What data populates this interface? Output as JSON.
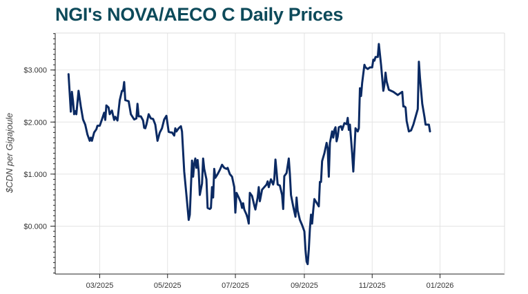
{
  "chart_data": {
    "type": "line",
    "title": "NGI's NOVA/AECO C Daily Prices",
    "xlabel": "",
    "ylabel": "$CDN per Gigajoule",
    "y_tick_labels": [
      "$0.000",
      "$1.000",
      "$2.000",
      "$3.000"
    ],
    "y_tick_values": [
      0,
      1,
      2,
      3
    ],
    "x_tick_labels": [
      "03/2025",
      "05/2025",
      "07/2025",
      "09/2025",
      "11/2025",
      "01/2026"
    ],
    "x_tick_values": [
      "2025-03-01",
      "2025-05-01",
      "2025-07-01",
      "2025-09-01",
      "2025-11-01",
      "2026-01-01"
    ],
    "xlim": [
      "2025-01-20",
      "2026-02-28"
    ],
    "ylim": [
      -0.92,
      3.71
    ],
    "grid": true,
    "line_color": "#0b2a63",
    "series": [
      {
        "values": [
          [
            "2025-02-01",
            2.92
          ],
          [
            "2025-02-03",
            2.2
          ],
          [
            "2025-02-04",
            2.58
          ],
          [
            "2025-02-05",
            2.4
          ],
          [
            "2025-02-06",
            2.15
          ],
          [
            "2025-02-07",
            2.21
          ],
          [
            "2025-02-08",
            2.15
          ],
          [
            "2025-02-10",
            2.6
          ],
          [
            "2025-02-12",
            2.3
          ],
          [
            "2025-02-14",
            2.05
          ],
          [
            "2025-02-16",
            1.95
          ],
          [
            "2025-02-18",
            1.76
          ],
          [
            "2025-02-20",
            1.64
          ],
          [
            "2025-02-21",
            1.7
          ],
          [
            "2025-02-22",
            1.64
          ],
          [
            "2025-02-24",
            1.8
          ],
          [
            "2025-02-26",
            1.86
          ],
          [
            "2025-02-27",
            1.93
          ],
          [
            "2025-03-01",
            1.93
          ],
          [
            "2025-03-03",
            2.05
          ],
          [
            "2025-03-05",
            2.18
          ],
          [
            "2025-03-06",
            2.04
          ],
          [
            "2025-03-07",
            2.32
          ],
          [
            "2025-03-09",
            2.28
          ],
          [
            "2025-03-10",
            2.15
          ],
          [
            "2025-03-12",
            2.22
          ],
          [
            "2025-03-14",
            2.04
          ],
          [
            "2025-03-15",
            2.1
          ],
          [
            "2025-03-17",
            2.03
          ],
          [
            "2025-03-19",
            2.42
          ],
          [
            "2025-03-21",
            2.6
          ],
          [
            "2025-03-22",
            2.6
          ],
          [
            "2025-03-23",
            2.77
          ],
          [
            "2025-03-24",
            2.42
          ],
          [
            "2025-03-27",
            2.4
          ],
          [
            "2025-03-29",
            2.15
          ],
          [
            "2025-04-01",
            2.05
          ],
          [
            "2025-04-03",
            2.07
          ],
          [
            "2025-04-04",
            2.35
          ],
          [
            "2025-04-05",
            2.11
          ],
          [
            "2025-04-07",
            2.11
          ],
          [
            "2025-04-09",
            2.03
          ],
          [
            "2025-04-10",
            1.89
          ],
          [
            "2025-04-11",
            1.88
          ],
          [
            "2025-04-12",
            1.95
          ],
          [
            "2025-04-14",
            2.15
          ],
          [
            "2025-04-16",
            2.07
          ],
          [
            "2025-04-18",
            2.06
          ],
          [
            "2025-04-20",
            1.95
          ],
          [
            "2025-04-22",
            1.64
          ],
          [
            "2025-04-24",
            1.8
          ],
          [
            "2025-04-26",
            1.88
          ],
          [
            "2025-04-28",
            2.05
          ],
          [
            "2025-04-30",
            2.12
          ],
          [
            "2025-05-02",
            1.81
          ],
          [
            "2025-05-04",
            1.8
          ],
          [
            "2025-05-05",
            1.8
          ],
          [
            "2025-05-07",
            1.74
          ],
          [
            "2025-05-08",
            1.88
          ],
          [
            "2025-05-09",
            1.82
          ],
          [
            "2025-05-11",
            1.88
          ],
          [
            "2025-05-13",
            1.92
          ],
          [
            "2025-05-14",
            1.82
          ],
          [
            "2025-05-16",
            1.05
          ],
          [
            "2025-05-18",
            0.6
          ],
          [
            "2025-05-20",
            0.12
          ],
          [
            "2025-05-21",
            0.22
          ],
          [
            "2025-05-23",
            1.26
          ],
          [
            "2025-05-24",
            0.95
          ],
          [
            "2025-05-25",
            1.2
          ],
          [
            "2025-05-26",
            1.3
          ],
          [
            "2025-05-27",
            1.12
          ],
          [
            "2025-05-28",
            1.27
          ],
          [
            "2025-05-29",
            1.05
          ],
          [
            "2025-05-30",
            0.6
          ],
          [
            "2025-06-01",
            0.82
          ],
          [
            "2025-06-02",
            1.3
          ],
          [
            "2025-06-03",
            1.1
          ],
          [
            "2025-06-05",
            0.9
          ],
          [
            "2025-06-06",
            0.35
          ],
          [
            "2025-06-08",
            0.33
          ],
          [
            "2025-06-09",
            0.35
          ],
          [
            "2025-06-10",
            0.75
          ],
          [
            "2025-06-11",
            0.55
          ],
          [
            "2025-06-12",
            1.1
          ],
          [
            "2025-06-13",
            0.93
          ],
          [
            "2025-06-15",
            1.0
          ],
          [
            "2025-06-17",
            1.08
          ],
          [
            "2025-06-19",
            1.18
          ],
          [
            "2025-06-21",
            1.12
          ],
          [
            "2025-06-23",
            1.1
          ],
          [
            "2025-06-24",
            1.12
          ],
          [
            "2025-06-26",
            1.0
          ],
          [
            "2025-06-28",
            0.95
          ],
          [
            "2025-06-30",
            0.75
          ],
          [
            "2025-07-01",
            0.26
          ],
          [
            "2025-07-02",
            0.64
          ],
          [
            "2025-07-04",
            0.55
          ],
          [
            "2025-07-06",
            0.45
          ],
          [
            "2025-07-07",
            0.35
          ],
          [
            "2025-07-08",
            0.44
          ],
          [
            "2025-07-09",
            0.32
          ],
          [
            "2025-07-11",
            0.22
          ],
          [
            "2025-07-12",
            0.15
          ],
          [
            "2025-07-13",
            0.05
          ],
          [
            "2025-07-14",
            0.64
          ],
          [
            "2025-07-16",
            0.58
          ],
          [
            "2025-07-18",
            0.4
          ],
          [
            "2025-07-19",
            0.32
          ],
          [
            "2025-07-21",
            0.55
          ],
          [
            "2025-07-22",
            0.75
          ],
          [
            "2025-07-23",
            0.48
          ],
          [
            "2025-07-25",
            0.7
          ],
          [
            "2025-07-27",
            0.75
          ],
          [
            "2025-07-29",
            0.8
          ],
          [
            "2025-07-30",
            0.86
          ],
          [
            "2025-07-31",
            0.75
          ],
          [
            "2025-08-02",
            0.9
          ],
          [
            "2025-08-04",
            0.8
          ],
          [
            "2025-08-05",
            0.9
          ],
          [
            "2025-08-06",
            1.28
          ],
          [
            "2025-08-07",
            1.05
          ],
          [
            "2025-08-08",
            0.8
          ],
          [
            "2025-08-10",
            0.78
          ],
          [
            "2025-08-12",
            0.6
          ],
          [
            "2025-08-13",
            0.33
          ],
          [
            "2025-08-14",
            0.96
          ],
          [
            "2025-08-16",
            1.02
          ],
          [
            "2025-08-18",
            1.3
          ],
          [
            "2025-08-19",
            1.0
          ],
          [
            "2025-08-20",
            0.6
          ],
          [
            "2025-08-22",
            0.38
          ],
          [
            "2025-08-24",
            0.18
          ],
          [
            "2025-08-25",
            0.55
          ],
          [
            "2025-08-26",
            0.3
          ],
          [
            "2025-08-28",
            0.12
          ],
          [
            "2025-08-30",
            0.02
          ],
          [
            "2025-09-01",
            -0.1
          ],
          [
            "2025-09-02",
            -0.45
          ],
          [
            "2025-09-03",
            -0.68
          ],
          [
            "2025-09-04",
            -0.73
          ],
          [
            "2025-09-05",
            -0.45
          ],
          [
            "2025-09-06",
            -0.05
          ],
          [
            "2025-09-07",
            0.22
          ],
          [
            "2025-09-08",
            0.05
          ],
          [
            "2025-09-09",
            0.3
          ],
          [
            "2025-09-10",
            0.52
          ],
          [
            "2025-09-12",
            0.45
          ],
          [
            "2025-09-14",
            0.38
          ],
          [
            "2025-09-15",
            0.85
          ],
          [
            "2025-09-16",
            0.85
          ],
          [
            "2025-09-17",
            1.25
          ],
          [
            "2025-09-19",
            1.4
          ],
          [
            "2025-09-21",
            1.6
          ],
          [
            "2025-09-22",
            1.5
          ],
          [
            "2025-09-23",
            0.95
          ],
          [
            "2025-09-24",
            1.6
          ],
          [
            "2025-09-26",
            1.82
          ],
          [
            "2025-09-27",
            1.7
          ],
          [
            "2025-09-28",
            1.85
          ],
          [
            "2025-09-29",
            1.9
          ],
          [
            "2025-09-30",
            1.63
          ],
          [
            "2025-10-01",
            1.72
          ],
          [
            "2025-10-02",
            1.9
          ],
          [
            "2025-10-04",
            1.92
          ],
          [
            "2025-10-05",
            1.85
          ],
          [
            "2025-10-07",
            1.98
          ],
          [
            "2025-10-09",
            1.96
          ],
          [
            "2025-10-10",
            2.08
          ],
          [
            "2025-10-11",
            1.85
          ],
          [
            "2025-10-12",
            1.95
          ],
          [
            "2025-10-14",
            1.4
          ],
          [
            "2025-10-15",
            1.05
          ],
          [
            "2025-10-17",
            1.88
          ],
          [
            "2025-10-19",
            1.82
          ],
          [
            "2025-10-20",
            1.88
          ],
          [
            "2025-10-21",
            2.65
          ],
          [
            "2025-10-22",
            2.5
          ],
          [
            "2025-10-23",
            2.75
          ],
          [
            "2025-10-25",
            3.1
          ],
          [
            "2025-10-26",
            3.05
          ],
          [
            "2025-10-28",
            3.02
          ],
          [
            "2025-10-30",
            3.05
          ],
          [
            "2025-11-01",
            3.05
          ],
          [
            "2025-11-02",
            3.2
          ],
          [
            "2025-11-03",
            3.18
          ],
          [
            "2025-11-04",
            3.25
          ],
          [
            "2025-11-06",
            3.25
          ],
          [
            "2025-11-07",
            3.5
          ],
          [
            "2025-11-09",
            3.1
          ],
          [
            "2025-11-11",
            2.6
          ],
          [
            "2025-11-12",
            2.72
          ],
          [
            "2025-11-13",
            2.95
          ],
          [
            "2025-11-14",
            2.78
          ],
          [
            "2025-11-16",
            2.62
          ],
          [
            "2025-11-18",
            2.6
          ],
          [
            "2025-11-20",
            2.58
          ],
          [
            "2025-11-22",
            2.55
          ],
          [
            "2025-11-24",
            2.52
          ],
          [
            "2025-11-26",
            2.55
          ],
          [
            "2025-11-28",
            2.58
          ],
          [
            "2025-11-29",
            2.3
          ],
          [
            "2025-11-30",
            2.3
          ],
          [
            "2025-12-01",
            2.28
          ],
          [
            "2025-12-02",
            2.02
          ],
          [
            "2025-12-04",
            1.82
          ],
          [
            "2025-12-06",
            1.84
          ],
          [
            "2025-12-08",
            1.95
          ],
          [
            "2025-12-10",
            2.1
          ],
          [
            "2025-12-12",
            2.25
          ],
          [
            "2025-12-13",
            3.16
          ],
          [
            "2025-12-14",
            2.85
          ],
          [
            "2025-12-16",
            2.35
          ],
          [
            "2025-12-18",
            2.1
          ],
          [
            "2025-12-19",
            1.95
          ],
          [
            "2025-12-21",
            1.95
          ],
          [
            "2025-12-22",
            1.95
          ],
          [
            "2025-12-23",
            1.82
          ]
        ]
      }
    ]
  }
}
